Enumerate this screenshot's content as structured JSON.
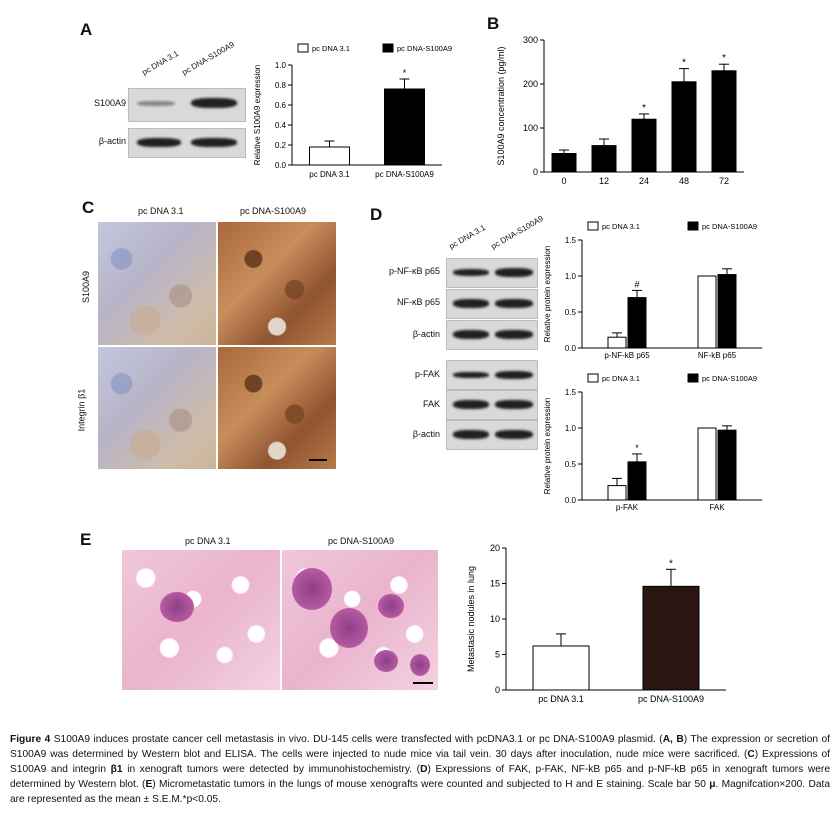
{
  "panels": {
    "A": "A",
    "B": "B",
    "C": "C",
    "D": "D",
    "E": "E"
  },
  "groups": {
    "ctrl": "pc DNA 3.1",
    "s100": "pc DNA-S100A9",
    "ctrl_lane": "pc DNA 3.1",
    "s100_lane": "pc DNA-S100A9"
  },
  "blots": {
    "a_rows": [
      "S100A9",
      "β-actin"
    ],
    "d_rows": [
      "p-NF-κB p65",
      "NF-κB p65",
      "β-actin",
      "p-FAK",
      "FAK",
      "β-actin"
    ]
  },
  "ihc": {
    "row1": "S100A9",
    "row2": "Integrin β1"
  },
  "colors": {
    "ctrl_bar": "#ffffff",
    "s100_bar": "#000000",
    "e_s100_bar": "#2b1510"
  },
  "chart_data": [
    {
      "id": "A",
      "type": "bar",
      "categories": [
        "pc DNA 3.1",
        "pc DNA-S100A9"
      ],
      "values": [
        0.18,
        0.76
      ],
      "errors": [
        0.06,
        0.1
      ],
      "sig": [
        "",
        "*"
      ],
      "legend": [
        "pc DNA 3.1",
        "pc DNA-S100A9"
      ],
      "ylabel": "Relative S100A9 expression",
      "ylim": [
        0,
        1.0
      ],
      "yticks": [
        "0.0",
        "0.2",
        "0.4",
        "0.6",
        "0.8",
        "1.0"
      ]
    },
    {
      "id": "B",
      "type": "bar",
      "categories": [
        "0",
        "12",
        "24",
        "48",
        "72"
      ],
      "values": [
        42,
        60,
        120,
        205,
        230
      ],
      "errors": [
        8,
        15,
        12,
        30,
        15
      ],
      "sig": [
        "",
        "",
        "*",
        "*",
        "*"
      ],
      "ylabel": "S100A9 concentration (pg/ml)",
      "ylim": [
        0,
        300
      ],
      "yticks": [
        "0",
        "100",
        "200",
        "300"
      ]
    },
    {
      "id": "D1",
      "type": "bar",
      "categories": [
        "p-NF-kB p65",
        "NF-kB p65"
      ],
      "series": [
        {
          "name": "pc DNA 3.1",
          "values": [
            0.15,
            1.0
          ],
          "errors": [
            0.06,
            0
          ]
        },
        {
          "name": "pc DNA-S100A9",
          "values": [
            0.7,
            1.02
          ],
          "errors": [
            0.1,
            0.08
          ]
        }
      ],
      "sig": [
        "#",
        ""
      ],
      "ylabel": "Relative protein expression",
      "ylim": [
        0,
        1.5
      ],
      "yticks": [
        "0.0",
        "0.5",
        "1.0",
        "1.5"
      ]
    },
    {
      "id": "D2",
      "type": "bar",
      "categories": [
        "p-FAK",
        "FAK"
      ],
      "series": [
        {
          "name": "pc DNA 3.1",
          "values": [
            0.2,
            1.0
          ],
          "errors": [
            0.1,
            0
          ]
        },
        {
          "name": "pc DNA-S100A9",
          "values": [
            0.53,
            0.97
          ],
          "errors": [
            0.11,
            0.06
          ]
        }
      ],
      "sig": [
        "*",
        ""
      ],
      "ylabel": "Relative protein expression",
      "ylim": [
        0,
        1.5
      ],
      "yticks": [
        "0.0",
        "0.5",
        "1.0",
        "1.5"
      ]
    },
    {
      "id": "E",
      "type": "bar",
      "categories": [
        "pc DNA 3.1",
        "pc DNA-S100A9"
      ],
      "values": [
        6.2,
        14.6
      ],
      "errors": [
        1.7,
        2.4
      ],
      "sig": [
        "",
        "*"
      ],
      "ylabel": "Metastasic nodules in lung",
      "ylim": [
        0,
        20
      ],
      "yticks": [
        "0",
        "5",
        "10",
        "15",
        "20"
      ]
    }
  ],
  "caption": {
    "fig": "Figure 4",
    "title": " S100A9 induces prostate cancer cell metastasis in vivo. DU-145 cells were transfected with pcDNA3.1 or pc DNA-S100A9 plasmid. (",
    "ab": "A, B",
    "t2": ") The expression or secretion of S100A9 was determined by Western blot and ELISA. The cells were injected to nude mice via tail vein. 30 days after inoculation, nude mice were sacrificed. (",
    "c": "C",
    "t3": ") Expressions of S100A9 and integrin ",
    "b1": "β1",
    "t4": " in xenograft tumors were detected by immunohistochemistry. (",
    "d": "D",
    "t5": ") Expressions of FAK, p-FAK, NF-kB p65 and p-NF-kB p65 in xenograft tumors were determined by Western blot. (",
    "e": "E",
    "t6": ") Micrometastatic tumors in the lungs of mouse xenografts were counted and subjected to H and E staining. Scale bar 50 ",
    "mu": "μ",
    "t7": ". Magnifcation×200. Data are represented as the mean ± S.E.M.*p<0.05."
  }
}
